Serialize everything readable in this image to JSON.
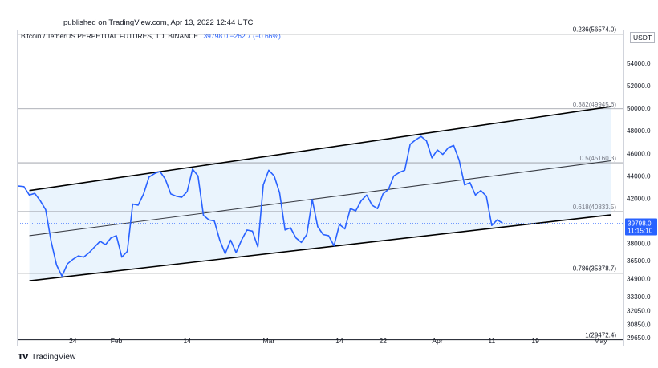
{
  "header": {
    "published": "published on TradingView.com, Apr 13, 2022 12:44 UTC",
    "symbol": "Bitcoin / TetherUS PERPETUAL FUTURES, 1D, BINANCE",
    "quote": "39798.0  −262.7 (−0.66%)"
  },
  "price_scale": {
    "unit": "USDT"
  },
  "footer": {
    "brand": "TradingView",
    "logo": "tradingview-logo-icon"
  },
  "colors": {
    "price": "#2962ff",
    "channel_fill": "#eaf4fd",
    "channel_line": "#000000",
    "fib_line": "#9598a1"
  },
  "chart_data": {
    "type": "line",
    "title": "",
    "xlabel": "",
    "ylabel": "",
    "ylim": [
      28950,
      56900
    ],
    "grid": false,
    "x": [
      "2022-01-14",
      "2022-01-15",
      "2022-01-16",
      "2022-01-17",
      "2022-01-18",
      "2022-01-19",
      "2022-01-20",
      "2022-01-21",
      "2022-01-22",
      "2022-01-23",
      "2022-01-24",
      "2022-01-25",
      "2022-01-26",
      "2022-01-27",
      "2022-01-28",
      "2022-01-29",
      "2022-01-30",
      "2022-01-31",
      "2022-02-01",
      "2022-02-02",
      "2022-02-03",
      "2022-02-04",
      "2022-02-05",
      "2022-02-06",
      "2022-02-07",
      "2022-02-08",
      "2022-02-09",
      "2022-02-10",
      "2022-02-11",
      "2022-02-12",
      "2022-02-13",
      "2022-02-14",
      "2022-02-15",
      "2022-02-16",
      "2022-02-17",
      "2022-02-18",
      "2022-02-19",
      "2022-02-20",
      "2022-02-21",
      "2022-02-22",
      "2022-02-23",
      "2022-02-24",
      "2022-02-25",
      "2022-02-26",
      "2022-02-27",
      "2022-02-28",
      "2022-03-01",
      "2022-03-02",
      "2022-03-03",
      "2022-03-04",
      "2022-03-05",
      "2022-03-06",
      "2022-03-07",
      "2022-03-08",
      "2022-03-09",
      "2022-03-10",
      "2022-03-11",
      "2022-03-12",
      "2022-03-13",
      "2022-03-14",
      "2022-03-15",
      "2022-03-16",
      "2022-03-17",
      "2022-03-18",
      "2022-03-19",
      "2022-03-20",
      "2022-03-21",
      "2022-03-22",
      "2022-03-23",
      "2022-03-24",
      "2022-03-25",
      "2022-03-26",
      "2022-03-27",
      "2022-03-28",
      "2022-03-29",
      "2022-03-30",
      "2022-03-31",
      "2022-04-01",
      "2022-04-02",
      "2022-04-03",
      "2022-04-04",
      "2022-04-05",
      "2022-04-06",
      "2022-04-07",
      "2022-04-08",
      "2022-04-09",
      "2022-04-10",
      "2022-04-11",
      "2022-04-12",
      "2022-04-13"
    ],
    "series": [
      {
        "values": [
          43100,
          43050,
          42300,
          42450,
          41800,
          41000,
          38200,
          36100,
          35100,
          36200,
          36600,
          36900,
          36800,
          37200,
          37700,
          38200,
          37900,
          38500,
          38700,
          36800,
          37300,
          41500,
          41400,
          42400,
          43900,
          44200,
          44400,
          43700,
          42400,
          42200,
          42100,
          42600,
          44600,
          44000,
          40500,
          40100,
          40000,
          38300,
          37100,
          38300,
          37200,
          38300,
          39200,
          39100,
          37700,
          43200,
          44500,
          44000,
          42500,
          39200,
          39400,
          38500,
          38100,
          38800,
          41900,
          39500,
          38800,
          38700,
          37800,
          39700,
          39300,
          41100,
          40900,
          41800,
          42300,
          41400,
          41100,
          42400,
          42800,
          44000,
          44300,
          44500,
          46800,
          47200,
          47500,
          47100,
          45600,
          46300,
          45900,
          46500,
          46700,
          45400,
          43200,
          43400,
          42300,
          42700,
          42200,
          39600,
          40100,
          39798
        ]
      }
    ],
    "y_ticks": [
      56574,
      54000,
      52000,
      50000,
      48000,
      46000,
      44000,
      42000,
      39798,
      38000,
      36500,
      34900,
      33300,
      32050,
      30850,
      29650
    ],
    "y_tick_labels": [
      "",
      "54000.0",
      "52000.0",
      "50000.0",
      "48000.0",
      "46000.0",
      "44000.0",
      "42000.0",
      "39798.0",
      "38000.0",
      "36500.0",
      "34900.0",
      "33300.0",
      "32050.0",
      "30850.0",
      "29650.0"
    ],
    "last_price_tag": {
      "price": 39798.0,
      "price_label": "39798.0",
      "countdown": "11:15:10"
    },
    "x_ticks": [
      {
        "date": "2022-01-24",
        "label": "24"
      },
      {
        "date": "2022-02-01",
        "label": "Feb"
      },
      {
        "date": "2022-02-14",
        "label": "14"
      },
      {
        "date": "2022-03-01",
        "label": "Mar"
      },
      {
        "date": "2022-03-14",
        "label": "14"
      },
      {
        "date": "2022-03-22",
        "label": "22"
      },
      {
        "date": "2022-04-01",
        "label": "Apr"
      },
      {
        "date": "2022-04-11",
        "label": "11"
      },
      {
        "date": "2022-04-19",
        "label": "19"
      },
      {
        "date": "2022-05-01",
        "label": "May"
      }
    ],
    "channel": {
      "upper": [
        {
          "date": "2022-01-16",
          "price": 42700
        },
        {
          "date": "2022-05-03",
          "price": 50150
        }
      ],
      "middle": [
        {
          "date": "2022-01-16",
          "price": 38700
        },
        {
          "date": "2022-05-03",
          "price": 45350
        }
      ],
      "lower": [
        {
          "date": "2022-01-16",
          "price": 34700
        },
        {
          "date": "2022-05-03",
          "price": 40550
        }
      ]
    },
    "fib_levels": [
      {
        "label": "0.236(56574.0)",
        "price": 56574.0
      },
      {
        "label": "0.382(49945.6)",
        "price": 49945.6
      },
      {
        "label": "0.5(45160.3)",
        "price": 45160.3
      },
      {
        "label": "0.618(40833.5)",
        "price": 40833.5
      },
      {
        "label": "0.786(35378.7)",
        "price": 35378.7
      },
      {
        "label": "1(29472.4)",
        "price": 29472.4
      }
    ]
  }
}
